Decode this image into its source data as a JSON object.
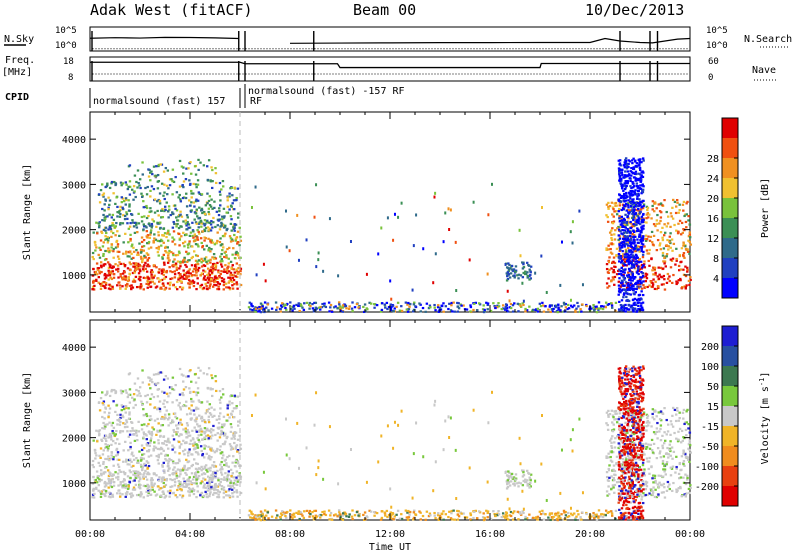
{
  "header": {
    "station": "Adak West (fitACF)",
    "beam": "Beam 00",
    "date": "10/Dec/2013"
  },
  "colors": {
    "background": "#ffffff",
    "axis": "#000000",
    "gap_line": "#bbbbbb"
  },
  "chart_data": [
    {
      "type": "line",
      "panel": "noise",
      "left_label": "N.Sky",
      "right_label": "N.Search",
      "left_ticks": [
        "10^5",
        "10^0"
      ],
      "right_ticks": [
        "10^5",
        "10^0"
      ],
      "y_scale": "log",
      "ylim": [
        1,
        100000
      ],
      "x": [
        0.0,
        1.0,
        2.0,
        3.0,
        4.0,
        5.0,
        5.95,
        6.2,
        8.0,
        10.0,
        12.0,
        14.0,
        16.0,
        18.0,
        20.0,
        20.6,
        21.2,
        22.0,
        22.5,
        23.5,
        24.0
      ],
      "series": [
        {
          "values": [
            450,
            600,
            500,
            700,
            650,
            550,
            400,
            null,
            40,
            45,
            50,
            55,
            55,
            60,
            60,
            400,
            120,
            60,
            50,
            300,
            400
          ]
        }
      ]
    },
    {
      "type": "line",
      "panel": "freq_nave",
      "left_label": "Freq.",
      "left_unit": "[MHz]",
      "right_label": "Nave",
      "left_ticks": [
        "18",
        "8"
      ],
      "right_ticks": [
        "60",
        "0"
      ],
      "ylim": [
        8,
        18
      ],
      "x": [
        0.0,
        6.0,
        6.2,
        9.9,
        10.0,
        18.0,
        18.05,
        24.0
      ],
      "series": [
        {
          "values": [
            15.8,
            15.8,
            15.2,
            15.2,
            13.6,
            13.6,
            15.3,
            15.3
          ]
        }
      ]
    },
    {
      "type": "table",
      "panel": "cpid",
      "label": "CPID",
      "segments": [
        {
          "start": 0.0,
          "end": 6.0,
          "text": "normalsound (fast) 157"
        },
        {
          "start": 6.0,
          "end": 6.05,
          "text": "RF"
        },
        {
          "start": 6.2,
          "end": 24.0,
          "text": "normalsound (fast) -157 RF"
        }
      ]
    },
    {
      "type": "heatmap",
      "panel": "power",
      "ylabel": "Slant Range [km]",
      "ylim": [
        180,
        4600
      ],
      "y_ticks": [
        "1000",
        "2000",
        "3000",
        "4000"
      ],
      "colorbar_label": "Power [dB]",
      "colorbar_ticks": [
        "4",
        "8",
        "12",
        "16",
        "20",
        "24",
        "28"
      ],
      "colorscale": [
        "#0000ff",
        "#2040c0",
        "#2f6a8a",
        "#3b8f55",
        "#79c23b",
        "#f0c030",
        "#f09020",
        "#f05010",
        "#e00000"
      ]
    },
    {
      "type": "heatmap",
      "panel": "velocity",
      "ylabel": "Slant Range [km]",
      "ylim": [
        180,
        4600
      ],
      "y_ticks": [
        "1000",
        "2000",
        "3000",
        "4000"
      ],
      "colorbar_label": "Velocity [m s",
      "colorbar_unit_sup": "-1",
      "colorbar_label_end": "]",
      "colorbar_ticks": [
        "200",
        "100",
        "50",
        "15",
        "-15",
        "-50",
        "-100",
        "-200"
      ],
      "colorscale": [
        "#1e1ed2",
        "#2850a0",
        "#3c7850",
        "#78c83c",
        "#c8c8c8",
        "#f0b428",
        "#f08c1e",
        "#e84010",
        "#e00000"
      ]
    }
  ],
  "x_axis": {
    "label": "Time UT",
    "ticks": [
      "00:00",
      "04:00",
      "08:00",
      "12:00",
      "16:00",
      "20:00",
      "00:00"
    ],
    "range_hours": [
      0,
      24
    ]
  }
}
